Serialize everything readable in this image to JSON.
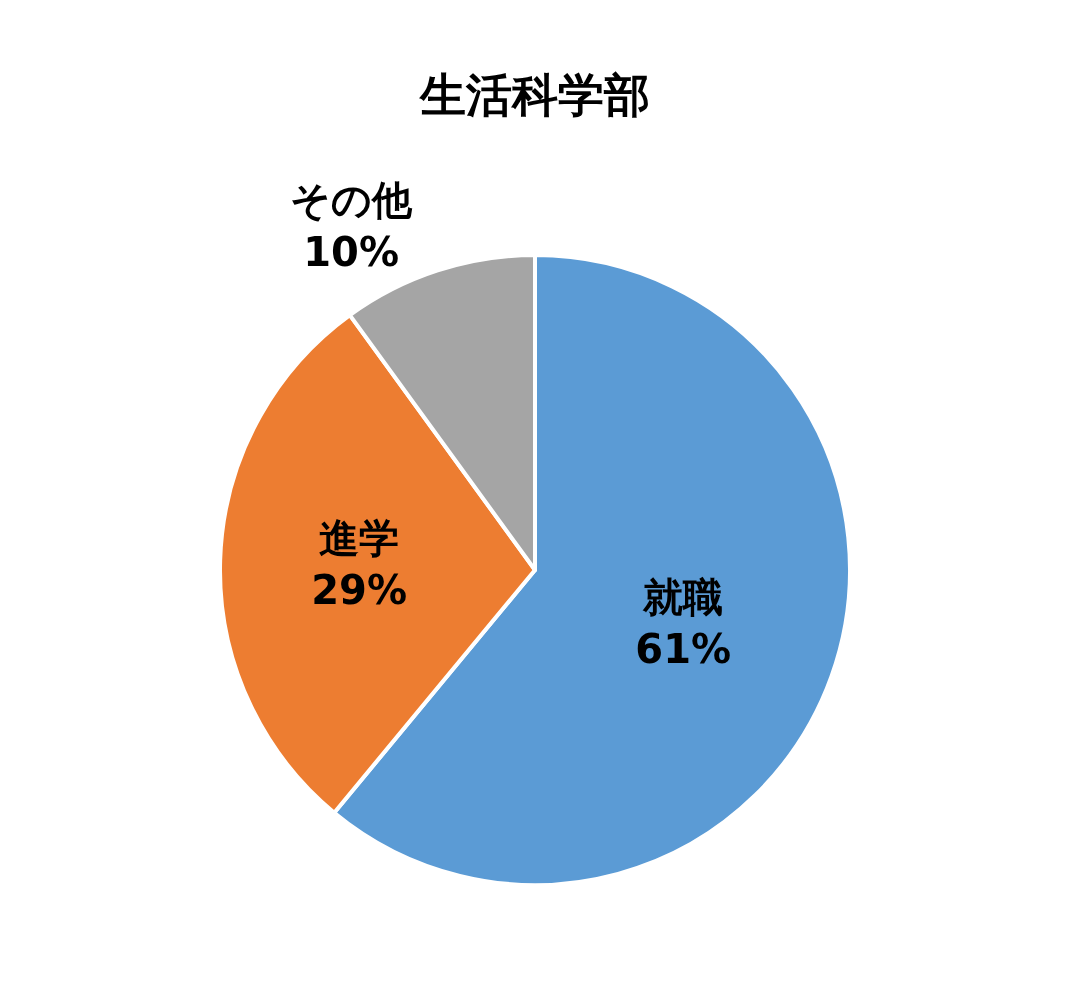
{
  "chart_data": {
    "type": "pie",
    "title": "生活科学部",
    "categories": [
      "就職",
      "進学",
      "その他"
    ],
    "values": [
      61,
      29,
      10
    ],
    "value_labels": [
      "61%",
      "29%",
      "10%"
    ],
    "colors": [
      "#5b9bd5",
      "#ed7d31",
      "#a5a5a5"
    ],
    "data_labels": true,
    "legend": false
  }
}
